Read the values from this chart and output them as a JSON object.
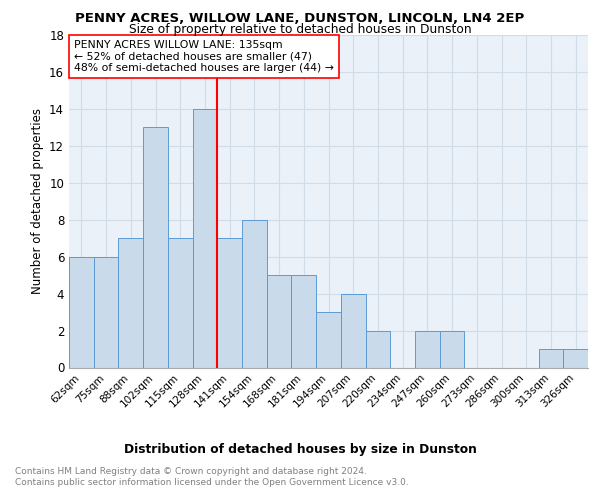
{
  "title1": "PENNY ACRES, WILLOW LANE, DUNSTON, LINCOLN, LN4 2EP",
  "title2": "Size of property relative to detached houses in Dunston",
  "xlabel": "Distribution of detached houses by size in Dunston",
  "ylabel": "Number of detached properties",
  "footnote": "Contains HM Land Registry data © Crown copyright and database right 2024.\nContains public sector information licensed under the Open Government Licence v3.0.",
  "categories": [
    "62sqm",
    "75sqm",
    "88sqm",
    "102sqm",
    "115sqm",
    "128sqm",
    "141sqm",
    "154sqm",
    "168sqm",
    "181sqm",
    "194sqm",
    "207sqm",
    "220sqm",
    "234sqm",
    "247sqm",
    "260sqm",
    "273sqm",
    "286sqm",
    "300sqm",
    "313sqm",
    "326sqm"
  ],
  "values": [
    6,
    6,
    7,
    13,
    7,
    14,
    7,
    8,
    5,
    5,
    3,
    4,
    2,
    0,
    2,
    2,
    0,
    0,
    0,
    1,
    1
  ],
  "bar_color": "#c9daea",
  "bar_edge_color": "#5b9bd5",
  "grid_color": "#d0dce8",
  "background_color": "#eaf1f8",
  "vline_x": 5.5,
  "vline_color": "red",
  "annotation_text": "PENNY ACRES WILLOW LANE: 135sqm\n← 52% of detached houses are smaller (47)\n48% of semi-detached houses are larger (44) →",
  "annotation_box_color": "white",
  "annotation_box_edge": "red",
  "ylim": [
    0,
    18
  ],
  "yticks": [
    0,
    2,
    4,
    6,
    8,
    10,
    12,
    14,
    16,
    18
  ]
}
